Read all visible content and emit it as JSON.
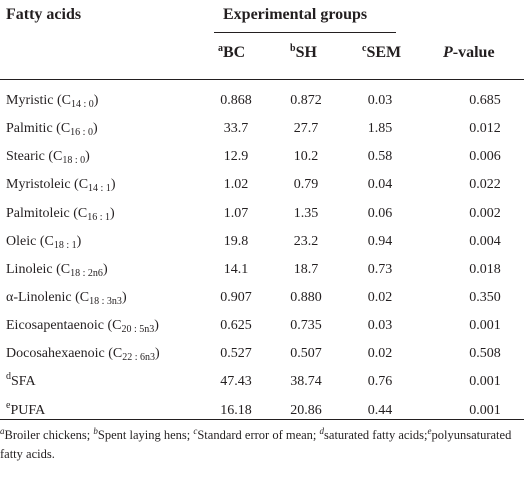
{
  "header": {
    "col0": "Fatty acids",
    "group_title": "Experimental groups",
    "bc_sup": "a",
    "bc": "BC",
    "sh_sup": "b",
    "sh": "SH",
    "sem_sup": "c",
    "sem": "SEM",
    "p_italic": "P",
    "p_rest": "-value"
  },
  "rows": [
    {
      "name": "Myristic (C",
      "sub": "14 : 0",
      "close": ")",
      "bc": "0.868",
      "sh": "0.872",
      "sem": "0.03",
      "p": "0.685"
    },
    {
      "name": "Palmitic (C",
      "sub": "16 : 0",
      "close": ")",
      "bc": "33.7",
      "sh": "27.7",
      "sem": "1.85",
      "p": "0.012"
    },
    {
      "name": "Stearic (C",
      "sub": "18 : 0",
      "close": ")",
      "bc": "12.9",
      "sh": "10.2",
      "sem": "0.58",
      "p": "0.006"
    },
    {
      "name": "Myristoleic (C",
      "sub": "14 : 1",
      "close": ")",
      "bc": "1.02",
      "sh": "0.79",
      "sem": "0.04",
      "p": "0.022"
    },
    {
      "name": "Palmitoleic (C",
      "sub": "16 : 1",
      "close": ")",
      "bc": "1.07",
      "sh": "1.35",
      "sem": "0.06",
      "p": "0.002"
    },
    {
      "name": "Oleic (C",
      "sub": "18 : 1",
      "close": ")",
      "bc": "19.8",
      "sh": "23.2",
      "sem": "0.94",
      "p": "0.004"
    },
    {
      "name": "Linoleic (C",
      "sub": "18 : 2n6",
      "close": ")",
      "bc": "14.1",
      "sh": "18.7",
      "sem": "0.73",
      "p": "0.018"
    },
    {
      "name": "α-Linolenic (C",
      "sub": "18 : 3n3",
      "close": ")",
      "bc": "0.907",
      "sh": "0.880",
      "sem": "0.02",
      "p": "0.350"
    },
    {
      "name": "Eicosapentaenoic (C",
      "sub": "20 : 5n3",
      "close": ")",
      "bc": "0.625",
      "sh": "0.735",
      "sem": "0.03",
      "p": "0.001"
    },
    {
      "name": "Docosahexaenoic (C",
      "sub": "22 : 6n3",
      "close": ")",
      "bc": "0.527",
      "sh": "0.507",
      "sem": "0.02",
      "p": "0.508"
    },
    {
      "sup": "d",
      "name": "SFA",
      "bc": "47.43",
      "sh": "38.74",
      "sem": "0.76",
      "p": "0.001"
    },
    {
      "sup": "e",
      "name": "PUFA",
      "bc": "16.18",
      "sh": "20.86",
      "sem": "0.44",
      "p": "0.001"
    }
  ],
  "footnotes": [
    {
      "sup": "a",
      "text": "Broiler chickens; "
    },
    {
      "sup": "b",
      "text": "Spent laying hens; "
    },
    {
      "sup": "c",
      "text": "Standard error of mean; "
    },
    {
      "sup": "d",
      "text": "saturated fatty acids;"
    },
    {
      "sup": "e",
      "text": "polyunsaturated fatty acids."
    }
  ]
}
